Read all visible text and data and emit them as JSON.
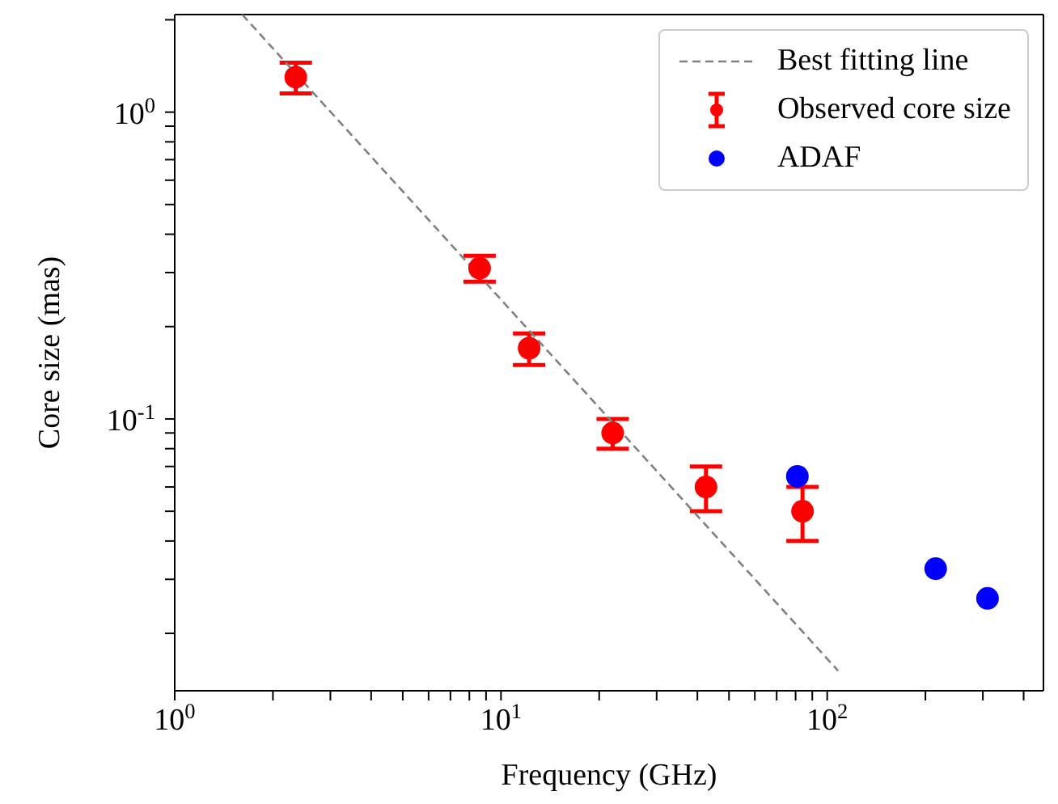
{
  "chart_data": {
    "type": "scatter",
    "xlabel": "Frequency (GHz)",
    "ylabel": "Core size (mas)",
    "log": "xy",
    "xlim": [
      1,
      460
    ],
    "ylim": [
      0.013,
      2.08
    ],
    "xticks": [
      {
        "value": 1,
        "label": "10$^{0}$"
      },
      {
        "value": 2,
        "label": null
      },
      {
        "value": 3,
        "label": null
      },
      {
        "value": 4,
        "label": null
      },
      {
        "value": 5,
        "label": null
      },
      {
        "value": 6,
        "label": null
      },
      {
        "value": 7,
        "label": null
      },
      {
        "value": 8,
        "label": null
      },
      {
        "value": 9,
        "label": null
      },
      {
        "value": 10,
        "label": "10$^{1}$"
      },
      {
        "value": 20,
        "label": null
      },
      {
        "value": 30,
        "label": null
      },
      {
        "value": 40,
        "label": null
      },
      {
        "value": 50,
        "label": null
      },
      {
        "value": 60,
        "label": null
      },
      {
        "value": 70,
        "label": null
      },
      {
        "value": 80,
        "label": null
      },
      {
        "value": 90,
        "label": null
      },
      {
        "value": 100,
        "label": "10$^{2}$"
      },
      {
        "value": 200,
        "label": null
      },
      {
        "value": 300,
        "label": null
      },
      {
        "value": 400,
        "label": null
      }
    ],
    "yticks": [
      {
        "value": 0.02,
        "label": null
      },
      {
        "value": 0.03,
        "label": null
      },
      {
        "value": 0.04,
        "label": null
      },
      {
        "value": 0.05,
        "label": null
      },
      {
        "value": 0.06,
        "label": null
      },
      {
        "value": 0.07,
        "label": null
      },
      {
        "value": 0.08,
        "label": null
      },
      {
        "value": 0.09,
        "label": null
      },
      {
        "value": 0.1,
        "label": "10$^{-1}$"
      },
      {
        "value": 0.2,
        "label": null
      },
      {
        "value": 0.3,
        "label": null
      },
      {
        "value": 0.4,
        "label": null
      },
      {
        "value": 0.5,
        "label": null
      },
      {
        "value": 0.6,
        "label": null
      },
      {
        "value": 0.7,
        "label": null
      },
      {
        "value": 0.8,
        "label": null
      },
      {
        "value": 0.9,
        "label": null
      },
      {
        "value": 1,
        "label": "10$^{0}$"
      },
      {
        "value": 2,
        "label": null
      }
    ],
    "legend": "top right",
    "series": [
      {
        "name": "Best fitting line",
        "type": "line",
        "color": "#808080",
        "line_style": "dashed",
        "marker": "none",
        "x": [
          1.61,
          108
        ],
        "values": [
          2.08,
          0.0151
        ]
      },
      {
        "name": "Observed core size",
        "color": "#ff0000",
        "marker": "circle",
        "x": [
          2.35,
          8.6,
          12.2,
          22,
          42.5,
          84
        ],
        "values": [
          1.3,
          0.31,
          0.17,
          0.09,
          0.06,
          0.05
        ],
        "errors": [
          0.15,
          0.03,
          0.02,
          0.01,
          0.01,
          0.01
        ]
      },
      {
        "name": "ADAF",
        "color": "#0000ff",
        "marker": "circle",
        "x": [
          81,
          215,
          310
        ],
        "values": [
          0.065,
          0.0325,
          0.026
        ]
      }
    ]
  }
}
